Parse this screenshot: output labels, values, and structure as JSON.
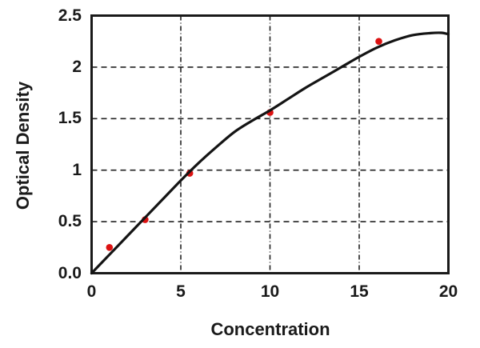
{
  "chart_data": {
    "type": "scatter",
    "title": "",
    "xlabel": "Concentration",
    "ylabel": "Optical Density",
    "xlim": [
      0,
      20
    ],
    "ylim": [
      0,
      2.5
    ],
    "grid": "dashed",
    "legend": "none",
    "x_ticks": [
      {
        "value": 0,
        "label": "0"
      },
      {
        "value": 5,
        "label": "5"
      },
      {
        "value": 10,
        "label": "10"
      },
      {
        "value": 15,
        "label": "15"
      },
      {
        "value": 20,
        "label": "20"
      }
    ],
    "y_ticks": [
      {
        "value": 0,
        "label": "0.0"
      },
      {
        "value": 0.5,
        "label": "0.5"
      },
      {
        "value": 1,
        "label": "1"
      },
      {
        "value": 1.5,
        "label": "1.5"
      },
      {
        "value": 2,
        "label": "2"
      },
      {
        "value": 2.5,
        "label": "2.5"
      }
    ],
    "series": [
      {
        "name": "measured-points",
        "type": "scatter",
        "color": "#dc1212",
        "marker_radius_px": 4.3,
        "points": [
          [
            1,
            0.25
          ],
          [
            3,
            0.52
          ],
          [
            5.5,
            0.97
          ],
          [
            10,
            1.56
          ],
          [
            16.1,
            2.25
          ]
        ]
      },
      {
        "name": "fit-curve",
        "type": "line",
        "color": "#141414",
        "stroke_width_px": 3.2,
        "points": [
          [
            0,
            0.0
          ],
          [
            1,
            0.18
          ],
          [
            2,
            0.36
          ],
          [
            3,
            0.54
          ],
          [
            4,
            0.72
          ],
          [
            5,
            0.9
          ],
          [
            6,
            1.07
          ],
          [
            7,
            1.225
          ],
          [
            8,
            1.37
          ],
          [
            9,
            1.48
          ],
          [
            10,
            1.58
          ],
          [
            11,
            1.69
          ],
          [
            12,
            1.8
          ],
          [
            13,
            1.9
          ],
          [
            14,
            2.0
          ],
          [
            15,
            2.1
          ],
          [
            16,
            2.19
          ],
          [
            17,
            2.26
          ],
          [
            18,
            2.31
          ],
          [
            19,
            2.33
          ],
          [
            19.6,
            2.333
          ],
          [
            20,
            2.32
          ]
        ]
      }
    ],
    "colors": {
      "background": "#ffffff",
      "axis_border": "#1a1a1a",
      "gridline": "#222222",
      "tick_text": "#1a1a1a"
    }
  }
}
